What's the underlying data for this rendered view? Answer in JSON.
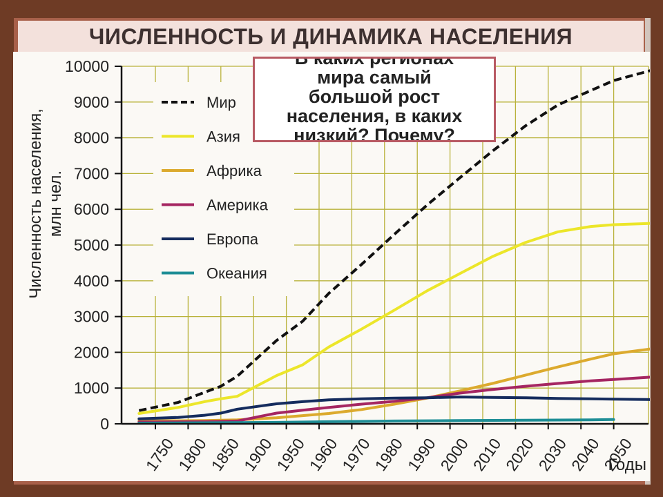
{
  "title": "ЧИСЛЕННОСТЬ И ДИНАМИКА НАСЕЛЕНИЯ",
  "question": "В каких регионах\nмира самый\nбольшой рост\nнаселения, в каких\nнизкий? Почему?",
  "colors": {
    "background": "#6e3b25",
    "frame": "#a8604a",
    "title_bar": "#f3e1dc",
    "question_border": "#b85a63"
  },
  "chart_data": {
    "type": "line",
    "title": "",
    "ylabel": "Численность населения,\nмлн чел.",
    "xlabel": "Годы",
    "ylim": [
      0,
      10000
    ],
    "yticks": [
      "0",
      "1000",
      "2000",
      "3000",
      "4000",
      "5000",
      "6000",
      "7000",
      "8000",
      "9000",
      "10000"
    ],
    "categories": [
      "1750",
      "1800",
      "1850",
      "1900",
      "1950",
      "1960",
      "1970",
      "1980",
      "1990",
      "2000",
      "2010",
      "2020",
      "2030",
      "2040",
      "2050"
    ],
    "x_note": "x positions are category indices 0–14; extra points after index 14 extend to the chart's right end",
    "grid": true,
    "legend_position": "top-left",
    "series": [
      {
        "name": "Мир",
        "color": "#111111",
        "style": "dashed",
        "x": [
          -0.5,
          0.7,
          1.5,
          2.0,
          2.5,
          3.7,
          4.5,
          5.3,
          6.3,
          7.3,
          8.3,
          9.3,
          10.3,
          11.3,
          12.3,
          13.3,
          14.0,
          14.8,
          15.4
        ],
        "values": [
          370,
          600,
          880,
          1050,
          1330,
          2330,
          2870,
          3650,
          4460,
          5300,
          6120,
          6880,
          7630,
          8330,
          8920,
          9320,
          9600,
          9800,
          9950
        ]
      },
      {
        "name": "Азия",
        "color": "#ece62a",
        "style": "solid",
        "x": [
          -0.5,
          0.7,
          1.5,
          2.0,
          2.5,
          3.7,
          4.5,
          5.3,
          6.3,
          7.3,
          8.3,
          9.3,
          10.3,
          11.3,
          12.3,
          13.3,
          14.0,
          15.0,
          15.4
        ],
        "values": [
          290,
          460,
          620,
          700,
          770,
          1350,
          1650,
          2150,
          2650,
          3180,
          3720,
          4200,
          4680,
          5070,
          5370,
          5520,
          5570,
          5600,
          5620
        ]
      },
      {
        "name": "Африка",
        "color": "#dcaa2e",
        "style": "solid",
        "x": [
          -0.5,
          1.5,
          2.5,
          3.7,
          4.5,
          5.3,
          6.3,
          7.3,
          8.3,
          9.3,
          10.3,
          11.3,
          12.3,
          13.3,
          14.0,
          15.0,
          15.4
        ],
        "values": [
          80,
          90,
          110,
          170,
          230,
          290,
          400,
          550,
          720,
          920,
          1130,
          1360,
          1590,
          1810,
          1960,
          2080,
          2130
        ]
      },
      {
        "name": "Америка",
        "color": "#a52662",
        "style": "solid",
        "x": [
          -0.5,
          1.5,
          2.5,
          3.7,
          4.5,
          5.3,
          6.3,
          7.3,
          8.3,
          9.3,
          10.3,
          11.3,
          12.3,
          13.3,
          14.0,
          15.0,
          15.4
        ],
        "values": [
          50,
          60,
          80,
          300,
          380,
          460,
          550,
          630,
          730,
          860,
          960,
          1050,
          1130,
          1200,
          1240,
          1300,
          1320
        ]
      },
      {
        "name": "Европа",
        "color": "#152c5e",
        "style": "solid",
        "x": [
          -0.5,
          0.7,
          1.5,
          2.0,
          2.5,
          3.7,
          4.5,
          5.3,
          6.3,
          7.3,
          8.3,
          9.3,
          10.3,
          11.3,
          12.3,
          13.3,
          14.0,
          15.0,
          15.4
        ],
        "values": [
          140,
          180,
          240,
          300,
          410,
          560,
          620,
          670,
          700,
          720,
          730,
          750,
          740,
          730,
          710,
          700,
          690,
          680,
          670
        ]
      },
      {
        "name": "Океания",
        "color": "#1e8e96",
        "style": "solid",
        "x": [
          -0.5,
          3.7,
          5.3,
          7.3,
          9.3,
          11.3,
          13.3,
          14.0
        ],
        "values": [
          20,
          40,
          60,
          80,
          90,
          100,
          110,
          120
        ]
      }
    ]
  }
}
